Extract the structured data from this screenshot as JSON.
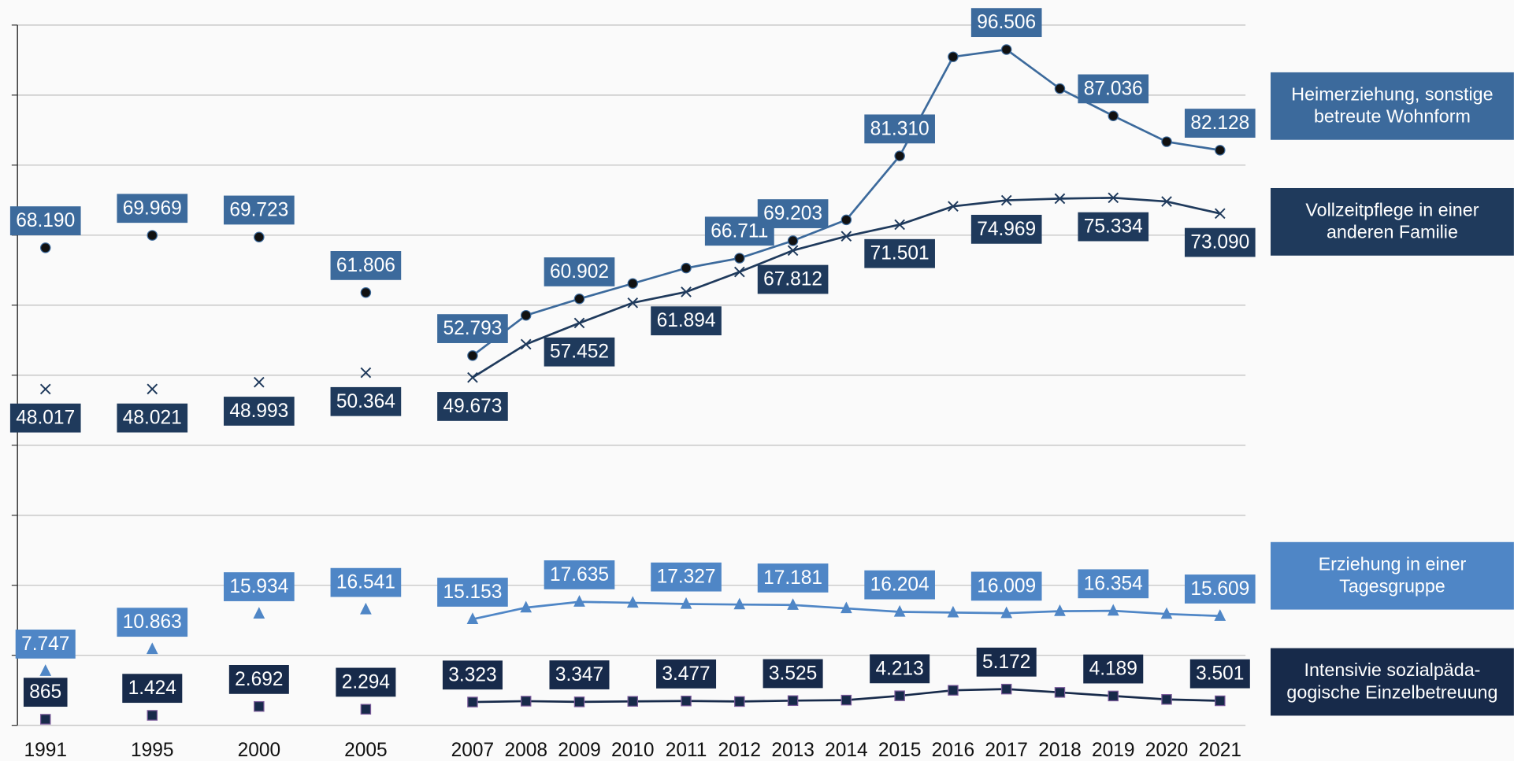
{
  "chart_data": {
    "type": "line",
    "categories": [
      "1991",
      "1995",
      "2000",
      "2005",
      "2007",
      "2008",
      "2009",
      "2010",
      "2011",
      "2012",
      "2013",
      "2014",
      "2015",
      "2016",
      "2017",
      "2018",
      "2019",
      "2020",
      "2021"
    ],
    "ylim": [
      0,
      100000
    ],
    "yticks": [
      0,
      10000,
      20000,
      30000,
      40000,
      50000,
      60000,
      70000,
      80000,
      90000,
      100000
    ],
    "grid": true,
    "series": [
      {
        "name": "Heimerziehung, sonstige betreute Wohnform",
        "color": "#3c6a9c",
        "marker": "circle",
        "values": [
          68190,
          69969,
          69723,
          61806,
          52793,
          58548,
          60902,
          63094,
          65298,
          66711,
          69203,
          72186,
          81310,
          95469,
          96506,
          90920,
          87036,
          83345,
          82128
        ],
        "value_labels": [
          "68.190",
          "69.969",
          "69.723",
          "61.806",
          "52.793",
          null,
          "60.902",
          null,
          null,
          "66.711",
          "69.203",
          null,
          "81.310",
          null,
          "96.506",
          null,
          "87.036",
          null,
          "82.128"
        ]
      },
      {
        "name": "Vollzeitpflege in einer anderen Familie",
        "color": "#1f3a5c",
        "marker": "x",
        "values": [
          48017,
          48021,
          48993,
          50364,
          49673,
          54415,
          57452,
          60339,
          61894,
          64747,
          67812,
          69844,
          71501,
          74115,
          74969,
          75217,
          75334,
          74804,
          73090
        ],
        "value_labels": [
          "48.017",
          "48.021",
          "48.993",
          "50.364",
          "49.673",
          null,
          "57.452",
          null,
          "61.894",
          null,
          "67.812",
          null,
          "71.501",
          null,
          "74.969",
          null,
          "75.334",
          null,
          "73.090"
        ]
      },
      {
        "name": "Erziehung in einer Tagesgruppe",
        "color": "#4f86c6",
        "marker": "triangle",
        "values": [
          7747,
          10863,
          15934,
          16541,
          15153,
          16807,
          17635,
          17500,
          17327,
          17250,
          17181,
          16700,
          16204,
          16100,
          16009,
          16300,
          16354,
          15900,
          15609
        ],
        "value_labels": [
          "7.747",
          "10.863",
          "15.934",
          "16.541",
          "15.153",
          null,
          "17.635",
          null,
          "17.327",
          null,
          "17.181",
          null,
          "16.204",
          null,
          "16.009",
          null,
          "16.354",
          null,
          "15.609"
        ]
      },
      {
        "name": "Intensivie sozialpäda-gogische Einzelbetreuung",
        "color": "#172a4a",
        "marker": "square",
        "values": [
          865,
          1424,
          2692,
          2294,
          3323,
          3450,
          3347,
          3420,
          3477,
          3400,
          3525,
          3600,
          4213,
          5000,
          5172,
          4700,
          4189,
          3700,
          3501
        ],
        "value_labels": [
          "865",
          "1.424",
          "2.692",
          "2.294",
          "3.323",
          null,
          "3.347",
          null,
          "3.477",
          null,
          "3.525",
          null,
          "4.213",
          null,
          "5.172",
          null,
          "4.189",
          null,
          "3.501"
        ]
      }
    ]
  }
}
